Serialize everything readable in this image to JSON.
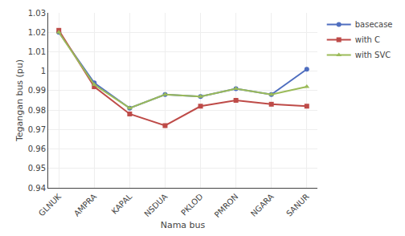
{
  "chart_data": {
    "type": "line",
    "xlabel": "Nama bus",
    "ylabel": "Tegangan bus (pu)",
    "categories": [
      "GLNUK",
      "AMPRA",
      "KAPAL",
      "NSDUA",
      "PKLOD",
      "PMRON",
      "NGARA",
      "SANUR"
    ],
    "series": [
      {
        "name": "basecase",
        "color": "#4F6EBF",
        "marker": "circle",
        "values": [
          1.02,
          0.994,
          0.981,
          0.988,
          0.987,
          0.991,
          0.988,
          1.001
        ]
      },
      {
        "name": "with C",
        "color": "#BE4B48",
        "marker": "square",
        "values": [
          1.021,
          0.992,
          0.978,
          0.972,
          0.982,
          0.985,
          0.983,
          0.982
        ]
      },
      {
        "name": "with SVC",
        "color": "#9BBB59",
        "marker": "triangle-up",
        "values": [
          1.02,
          0.993,
          0.981,
          0.988,
          0.987,
          0.991,
          0.988,
          0.992
        ]
      }
    ],
    "ylim": [
      0.94,
      1.03
    ],
    "yticks": [
      0.94,
      0.95,
      0.96,
      0.97,
      0.98,
      0.99,
      1,
      1.01,
      1.02,
      1.03
    ],
    "grid": true,
    "legend": "upper right"
  }
}
